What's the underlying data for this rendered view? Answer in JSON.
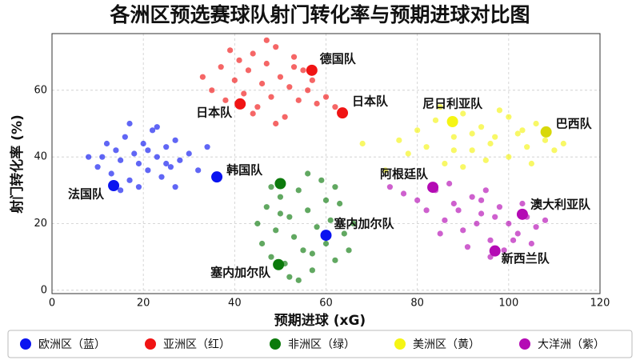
{
  "chart_data": {
    "type": "scatter",
    "title": "各洲区预选赛球队射门转化率与预期进球对比图",
    "x_label": "预期进球 (xG)",
    "y_label": "射门转化率 (%)",
    "xlim": [
      0,
      120
    ],
    "ylim": [
      -1,
      77
    ],
    "xticks": [
      0,
      20,
      40,
      60,
      80,
      100,
      120
    ],
    "yticks": [
      0,
      20,
      40,
      60
    ],
    "grid": true,
    "legend": "bottom",
    "series": [
      {
        "name": "欧洲区（蓝）",
        "color": "#0a14f0",
        "x": [
          8,
          10,
          12,
          13,
          14,
          15,
          16,
          17,
          18,
          19,
          20,
          21,
          22,
          23,
          24,
          25,
          26,
          27,
          28,
          30,
          32,
          34,
          11,
          15,
          19,
          23,
          27,
          17,
          21,
          25
        ],
        "y": [
          40,
          37,
          44,
          35,
          42,
          39,
          46,
          33,
          41,
          38,
          44,
          36,
          48,
          40,
          34,
          43,
          37,
          45,
          39,
          41,
          36,
          43,
          40,
          30,
          31,
          49,
          31,
          50,
          42,
          38
        ]
      },
      {
        "name": "亚洲区（红）",
        "color": "#f01414",
        "x": [
          33,
          35,
          37,
          38,
          40,
          41,
          42,
          43,
          44,
          45,
          46,
          47,
          48,
          49,
          50,
          51,
          52,
          53,
          54,
          55,
          56,
          57,
          58,
          60,
          62,
          39,
          44,
          49,
          53,
          47
        ],
        "y": [
          64,
          60,
          67,
          57,
          63,
          69,
          59,
          66,
          71,
          55,
          62,
          68,
          58,
          73,
          64,
          52,
          61,
          70,
          57,
          66,
          60,
          63,
          56,
          58,
          55,
          72,
          53,
          50,
          67,
          75
        ]
      },
      {
        "name": "非洲区（绿）",
        "color": "#0c7a0c",
        "x": [
          45,
          46,
          47,
          48,
          49,
          50,
          51,
          52,
          53,
          54,
          55,
          56,
          57,
          58,
          59,
          60,
          61,
          62,
          63,
          64,
          65,
          66,
          48,
          52,
          56,
          60,
          54,
          57,
          62,
          50
        ],
        "y": [
          20,
          14,
          25,
          10,
          18,
          28,
          8,
          22,
          16,
          30,
          12,
          24,
          6,
          19,
          33,
          14,
          21,
          9,
          26,
          17,
          12,
          20,
          31,
          4,
          35,
          27,
          3,
          11,
          31,
          23
        ]
      },
      {
        "name": "美洲区（黄）",
        "color": "#f5f514",
        "x": [
          76,
          78,
          80,
          82,
          84,
          86,
          88,
          90,
          92,
          94,
          96,
          98,
          100,
          102,
          104,
          106,
          108,
          110,
          112,
          85,
          90,
          95,
          100,
          105,
          92,
          97,
          88,
          103,
          73,
          68
        ],
        "y": [
          45,
          41,
          48,
          43,
          51,
          38,
          46,
          53,
          42,
          49,
          44,
          54,
          40,
          47,
          43,
          50,
          45,
          42,
          44,
          55,
          37,
          39,
          52,
          38,
          47,
          46,
          42,
          48,
          36,
          44
        ]
      },
      {
        "name": "大洋洲（紫）",
        "color": "#b40ab4",
        "x": [
          80,
          82,
          84,
          86,
          88,
          90,
          92,
          94,
          96,
          98,
          100,
          102,
          104,
          106,
          108,
          87,
          91,
          95,
          99,
          103,
          85,
          93,
          97,
          101,
          89,
          94,
          77,
          74,
          105,
          96
        ],
        "y": [
          27,
          24,
          30,
          21,
          26,
          18,
          28,
          23,
          15,
          25,
          20,
          17,
          22,
          19,
          21,
          32,
          13,
          30,
          12,
          26,
          17,
          20,
          22,
          15,
          24,
          27,
          29,
          31,
          14,
          10
        ]
      }
    ],
    "highlights": [
      {
        "label": "德国队",
        "x": 56.9,
        "y": 66,
        "color": "#f01414"
      },
      {
        "label": "日本队",
        "x": 41.2,
        "y": 55.9,
        "color": "#f01414"
      },
      {
        "label": "日本队",
        "x": 63.6,
        "y": 53.2,
        "color": "#f01414"
      },
      {
        "label": "尼日利亚队",
        "x": 87.7,
        "y": 50.6,
        "color": "#f5f514"
      },
      {
        "label": "巴西队",
        "x": 108.2,
        "y": 47.5,
        "color": "#d8d80a"
      },
      {
        "label": "法国队",
        "x": 13.5,
        "y": 31.4,
        "color": "#0a14f0"
      },
      {
        "label": "韩国队",
        "x": 36.1,
        "y": 34,
        "color": "#0a14f0"
      },
      {
        "x": 50,
        "y": 32,
        "color": "#0c7a0c"
      },
      {
        "label": "阿根廷队",
        "x": 83.4,
        "y": 30.9,
        "color": "#b40ab4"
      },
      {
        "label": "塞内加尔队",
        "x": 60,
        "y": 16.5,
        "color": "#0a14f0"
      },
      {
        "label": "塞内加尔队",
        "x": 49.6,
        "y": 7.7,
        "color": "#0c7a0c"
      },
      {
        "label": "澳大利亚队",
        "x": 103,
        "y": 22.8,
        "color": "#b40ab4"
      },
      {
        "label": "新西兰队",
        "x": 97,
        "y": 11.8,
        "color": "#b40ab4"
      }
    ]
  }
}
